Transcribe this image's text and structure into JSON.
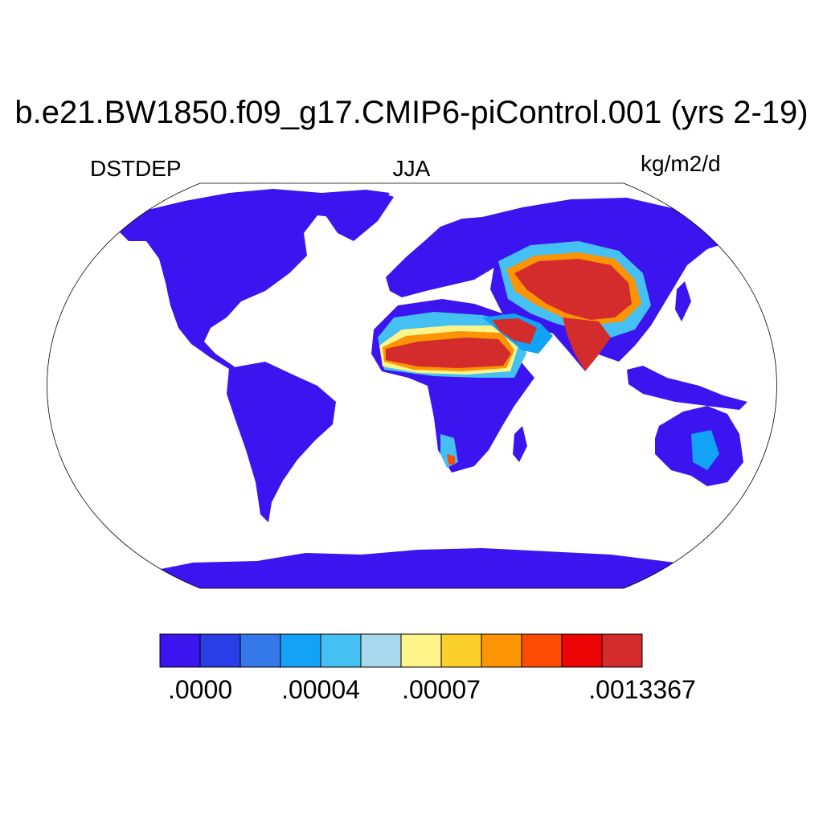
{
  "title": "b.e21.BW1850.f09_g17.CMIP6-piControl.001 (yrs 2-19)",
  "left_label": "DSTDEP",
  "center_label": "JJA",
  "right_label": "kg/m2/d",
  "colorbar": {
    "colors": [
      "#3c14f0",
      "#2a3ee8",
      "#3478ea",
      "#12a2f6",
      "#44c0f2",
      "#a8d8ee",
      "#fff48a",
      "#fcd02a",
      "#fc9404",
      "#fc4c04",
      "#ec0404",
      "#d42c2c"
    ],
    "labels": [
      {
        "text": ".0000",
        "boundary": 0
      },
      {
        "text": ".00004",
        "boundary": 3
      },
      {
        "text": ".00007",
        "boundary": 6
      },
      {
        "text": ".0013367",
        "boundary": 11
      }
    ]
  },
  "map": {
    "projection": "Robinson",
    "ocean_color": "#ffffff",
    "land_color": "#3c14f0"
  }
}
